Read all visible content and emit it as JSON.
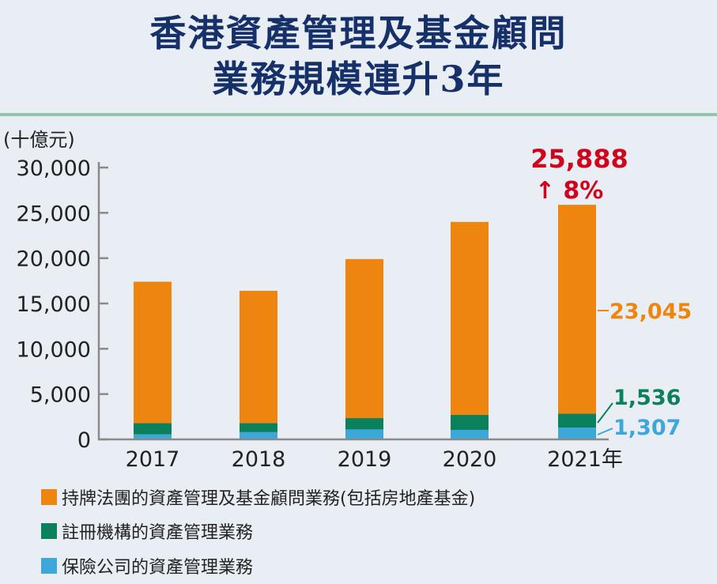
{
  "title": [
    "香港資產管理及基金顧問",
    "業務規模連升3年"
  ],
  "colors": {
    "licensed": "#ee850e",
    "registered": "#0a805c",
    "insurance": "#3ea7d9",
    "title": "#16306a",
    "highlight": "#d0051c"
  },
  "chart_data": {
    "type": "bar",
    "stacked": true,
    "unit_label": "(十億元)",
    "categories": [
      "2017",
      "2018",
      "2019",
      "2020",
      "2021年"
    ],
    "ylim": [
      0,
      30000
    ],
    "yticks": [
      "0",
      "5,000",
      "10,000",
      "15,000",
      "20,000",
      "25,000",
      "30,000"
    ],
    "grid": false,
    "legend_position": "bottom",
    "series": [
      {
        "name": "保險公司的資產管理業務",
        "values": [
          550,
          800,
          1100,
          1050,
          1307
        ]
      },
      {
        "name": "註冊機構的資產管理業務",
        "values": [
          1250,
          1000,
          1250,
          1650,
          1536
        ]
      },
      {
        "name": "持牌法團的資產管理及基金顧問業務(包括房地產基金)",
        "values": [
          15600,
          14600,
          17550,
          21300,
          23045
        ]
      }
    ],
    "annotations": {
      "total_2021": "25,888",
      "growth": "↑ 8%",
      "licensed_2021": "23,045",
      "registered_2021": "1,536",
      "insurance_2021": "1,307"
    }
  }
}
